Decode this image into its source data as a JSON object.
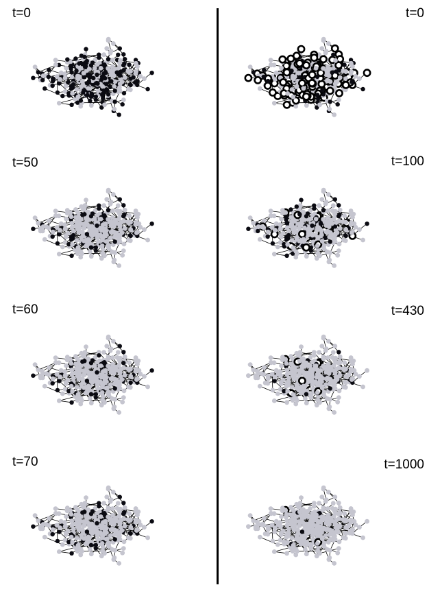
{
  "figure": {
    "colors": {
      "node_inactive": "#c5c5cf",
      "node_active": "#0b0b12",
      "node_hollow_fill": "#ffffff",
      "node_hollow_stroke": "#000000",
      "edge": "#000000",
      "divider": "#000000"
    },
    "left_column": [
      {
        "label": "t=0",
        "active_fraction": 0.55,
        "hollow_fraction": 0.0
      },
      {
        "label": "t=50",
        "active_fraction": 0.22,
        "hollow_fraction": 0.0
      },
      {
        "label": "t=60",
        "active_fraction": 0.18,
        "hollow_fraction": 0.0
      },
      {
        "label": "t=70",
        "active_fraction": 0.2,
        "hollow_fraction": 0.0
      }
    ],
    "right_column": [
      {
        "label": "t=0",
        "active_fraction": 0.45,
        "hollow_fraction": 0.35
      },
      {
        "label": "t=100",
        "active_fraction": 0.28,
        "hollow_fraction": 0.05
      },
      {
        "label": "t=430",
        "active_fraction": 0.1,
        "hollow_fraction": 0.02
      },
      {
        "label": "t=1000",
        "active_fraction": 0.02,
        "hollow_fraction": 0.004
      }
    ]
  }
}
